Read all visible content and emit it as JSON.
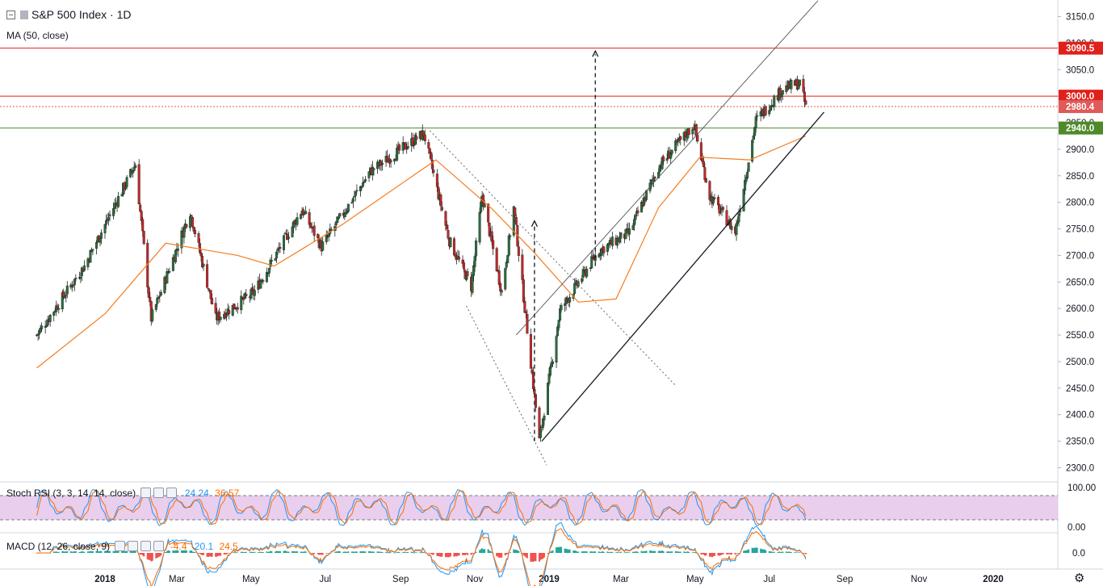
{
  "header": {
    "symbol_title": "S&P 500 Index · 1D",
    "ma_legend": "MA (50, close)"
  },
  "indicators": {
    "stoch_rsi": {
      "label": "Stoch RSI (3, 3, 14, 14, close)",
      "k": "24.24",
      "d": "36.57"
    },
    "macd": {
      "label": "MACD (12, 26, close, 9)",
      "v1": "-4.4",
      "v2": "20.1",
      "v3": "24.5"
    }
  },
  "price_labels": [
    {
      "value": "3090.5",
      "color": "#e0201b"
    },
    {
      "value": "3000.0",
      "color": "#e0201b"
    },
    {
      "value": "2980.4",
      "color": "#e05a5a"
    },
    {
      "value": "2940.0",
      "color": "#4f8a29"
    }
  ],
  "chart_data": {
    "type": "candlestick",
    "title": "S&P 500 Index · 1D",
    "x_ticks": [
      "2018",
      "Mar",
      "May",
      "Jul",
      "Sep",
      "Nov",
      "2019",
      "Mar",
      "May",
      "Jul",
      "Sep",
      "Nov",
      "2020"
    ],
    "y_ticks": [
      "2300.0",
      "2350.0",
      "2400.0",
      "2450.0",
      "2500.0",
      "2550.0",
      "2600.0",
      "2650.0",
      "2700.0",
      "2750.0",
      "2800.0",
      "2850.0",
      "2900.0",
      "2950.0",
      "3000.0",
      "3050.0",
      "3100.0",
      "3150.0"
    ],
    "ylim": [
      2280,
      3180
    ],
    "horizontal_levels": [
      {
        "value": 3090.5,
        "color": "#e0201b"
      },
      {
        "value": 3000.0,
        "color": "#e0201b"
      },
      {
        "value": 2980.4,
        "color": "#e05a5a",
        "style": "dotted"
      },
      {
        "value": 2940.0,
        "color": "#4f8a29"
      }
    ],
    "close_path_anchors": [
      [
        "2017-11-06",
        2550
      ],
      [
        "2017-12-15",
        2680
      ],
      [
        "2018-01-26",
        2872
      ],
      [
        "2018-02-08",
        2581
      ],
      [
        "2018-03-12",
        2783
      ],
      [
        "2018-04-02",
        2581
      ],
      [
        "2018-05-03",
        2629
      ],
      [
        "2018-06-12",
        2786
      ],
      [
        "2018-06-28",
        2716
      ],
      [
        "2018-08-07",
        2858
      ],
      [
        "2018-09-20",
        2930
      ],
      [
        "2018-10-11",
        2728
      ],
      [
        "2018-10-29",
        2641
      ],
      [
        "2018-11-07",
        2813
      ],
      [
        "2018-11-23",
        2632
      ],
      [
        "2018-12-03",
        2790
      ],
      [
        "2018-12-24",
        2351
      ],
      [
        "2019-01-10",
        2596
      ],
      [
        "2019-02-11",
        2709
      ],
      [
        "2019-03-08",
        2743
      ],
      [
        "2019-04-01",
        2867
      ],
      [
        "2019-04-30",
        2946
      ],
      [
        "2019-05-13",
        2812
      ],
      [
        "2019-06-03",
        2744
      ],
      [
        "2019-06-20",
        2954
      ],
      [
        "2019-07-12",
        3014
      ],
      [
        "2019-07-26",
        3025
      ],
      [
        "2019-07-31",
        2980
      ]
    ],
    "ma50_anchors": [
      [
        "2017-11-06",
        2488
      ],
      [
        "2018-01-01",
        2590
      ],
      [
        "2018-02-20",
        2723
      ],
      [
        "2018-04-20",
        2700
      ],
      [
        "2018-05-20",
        2680
      ],
      [
        "2018-07-15",
        2758
      ],
      [
        "2018-09-30",
        2880
      ],
      [
        "2018-11-15",
        2788
      ],
      [
        "2018-12-20",
        2705
      ],
      [
        "2019-01-25",
        2612
      ],
      [
        "2019-02-25",
        2618
      ],
      [
        "2019-04-01",
        2790
      ],
      [
        "2019-05-05",
        2885
      ],
      [
        "2019-06-15",
        2880
      ],
      [
        "2019-07-31",
        2925
      ]
    ],
    "trendlines": [
      {
        "from": [
          "2018-12-26",
          2350
        ],
        "to": [
          "2019-08-15",
          2970
        ],
        "style": "solid"
      },
      {
        "from": [
          "2018-12-05",
          2550
        ],
        "to": [
          "2019-08-10",
          3180
        ],
        "style": "thin"
      },
      {
        "from": [
          "2018-09-25",
          2935
        ],
        "to": [
          "2019-04-15",
          2455
        ],
        "style": "dotted"
      },
      {
        "from": [
          "2018-10-25",
          2605
        ],
        "to": [
          "2018-12-30",
          2305
        ],
        "style": "dotted"
      }
    ],
    "arrows": [
      {
        "at": "2018-12-20",
        "from": 2350,
        "to": 2765
      },
      {
        "at": "2019-02-08",
        "from": 2680,
        "to": 3085
      }
    ]
  }
}
